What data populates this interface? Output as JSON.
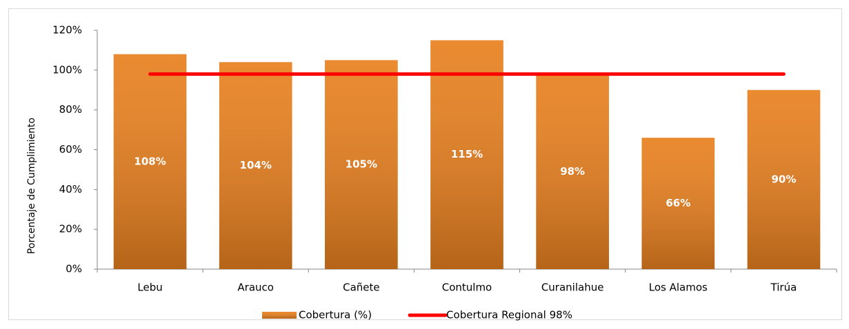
{
  "chart_data": {
    "type": "bar",
    "categories": [
      "Lebu",
      "Arauco",
      "Cañete",
      "Contulmo",
      "Curanilahue",
      "Los Alamos",
      "Tirúa"
    ],
    "series": [
      {
        "name": "Cobertura (%)",
        "type": "bar",
        "color": "#e8801f",
        "values": [
          108,
          104,
          105,
          115,
          98,
          66,
          90
        ],
        "value_labels": [
          "108%",
          "104%",
          "105%",
          "115%",
          "98%",
          "66%",
          "90%"
        ]
      },
      {
        "name": "Cobertura Regional 98%",
        "type": "line",
        "color": "#ff0000",
        "values": [
          98,
          98,
          98,
          98,
          98,
          98,
          98
        ]
      }
    ],
    "y_label": "Porcentaje de Cumplimiento",
    "ylim": [
      0,
      120
    ],
    "yticks": [
      {
        "value": 0,
        "label": "0%"
      },
      {
        "value": 20,
        "label": "20%"
      },
      {
        "value": 40,
        "label": "40%"
      },
      {
        "value": 60,
        "label": "60%"
      },
      {
        "value": 80,
        "label": "80%"
      },
      {
        "value": 100,
        "label": "100%"
      },
      {
        "value": 120,
        "label": "120%"
      }
    ],
    "grid": false,
    "legend": "bottom"
  }
}
